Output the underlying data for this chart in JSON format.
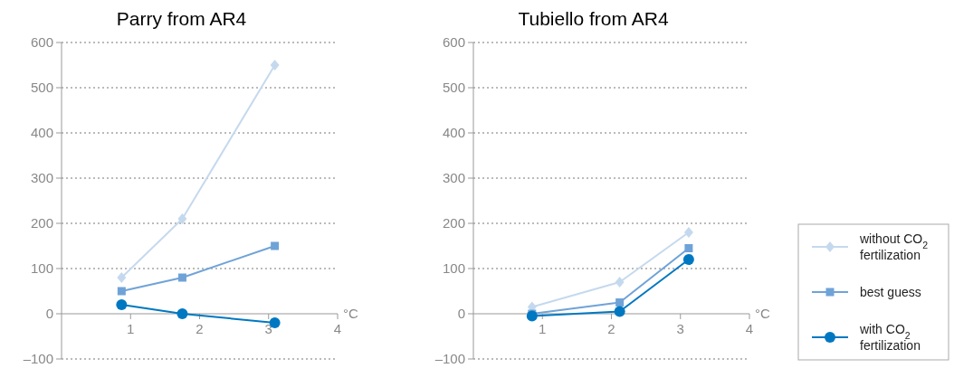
{
  "chart_data": [
    {
      "type": "line",
      "title": "Parry from AR4",
      "xlabel": "°C",
      "xlim": [
        0,
        4
      ],
      "xticks": [
        1,
        2,
        3,
        4
      ],
      "ylim": [
        -100,
        600
      ],
      "yticks": [
        {
          "value": -100,
          "label": "–100"
        },
        0,
        100,
        200,
        300,
        400,
        500,
        600
      ],
      "grid": "y",
      "legend": false,
      "line_style": "solid",
      "series": [
        {
          "color": "#c5d9ee",
          "marker": "diamond",
          "x": [
            0.87,
            1.75,
            3.09
          ],
          "values": [
            80,
            210,
            550
          ]
        },
        {
          "color": "#6fa3d8",
          "marker": "square",
          "x": [
            0.87,
            1.75,
            3.09
          ],
          "values": [
            50,
            80,
            150
          ]
        },
        {
          "color": "#0078c1",
          "marker": "circle",
          "x": [
            0.87,
            1.75,
            3.09
          ],
          "values": [
            20,
            0,
            -20
          ]
        }
      ]
    },
    {
      "type": "line",
      "title": "Tubiello from AR4",
      "xlabel": "°C",
      "xlim": [
        0,
        4
      ],
      "xticks": [
        1,
        2,
        3,
        4
      ],
      "ylim": [
        -100,
        600
      ],
      "yticks": [
        {
          "value": -100,
          "label": "–100"
        },
        0,
        100,
        200,
        300,
        400,
        500,
        600
      ],
      "grid": "y",
      "legend": "right",
      "line_style": "solid",
      "series": [
        {
          "name": "without CO$_{2}$ fertilization",
          "color": "#c5d9ee",
          "marker": "diamond",
          "x": [
            0.85,
            2.12,
            3.12
          ],
          "values": [
            15,
            70,
            180
          ]
        },
        {
          "name": "best guess",
          "color": "#6fa3d8",
          "marker": "square",
          "x": [
            0.85,
            2.12,
            3.12
          ],
          "values": [
            0,
            25,
            145
          ]
        },
        {
          "name": "with CO$_{2}$ fertilization",
          "color": "#0078c1",
          "marker": "circle",
          "x": [
            0.85,
            2.12,
            3.12
          ],
          "values": [
            -5,
            5,
            120
          ]
        }
      ]
    }
  ]
}
